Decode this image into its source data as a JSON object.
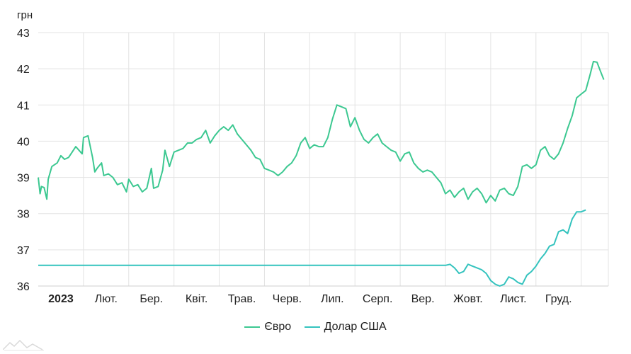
{
  "chart_data": {
    "type": "line",
    "title": "",
    "ylabel": "грн",
    "xlabel": "",
    "ylim": [
      36,
      43
    ],
    "yticks": [
      36,
      37,
      38,
      39,
      40,
      41,
      42,
      43
    ],
    "xlim": [
      0,
      12.6
    ],
    "x_tick_labels": [
      {
        "x": 0.5,
        "label": "2023",
        "bold": true
      },
      {
        "x": 1.5,
        "label": "Лют."
      },
      {
        "x": 2.5,
        "label": "Бер."
      },
      {
        "x": 3.5,
        "label": "Квіт."
      },
      {
        "x": 4.5,
        "label": "Трав."
      },
      {
        "x": 5.5,
        "label": "Черв."
      },
      {
        "x": 6.5,
        "label": "Лип."
      },
      {
        "x": 7.5,
        "label": "Серп."
      },
      {
        "x": 8.5,
        "label": "Вер."
      },
      {
        "x": 9.5,
        "label": "Жовт."
      },
      {
        "x": 10.5,
        "label": "Лист."
      },
      {
        "x": 11.5,
        "label": "Груд."
      }
    ],
    "grid": true,
    "legend": "bottom",
    "series": [
      {
        "name": "Євро",
        "color": "#3cc891",
        "points": [
          [
            0.0,
            39.0
          ],
          [
            0.04,
            38.55
          ],
          [
            0.07,
            38.75
          ],
          [
            0.13,
            38.72
          ],
          [
            0.19,
            38.4
          ],
          [
            0.22,
            38.95
          ],
          [
            0.3,
            39.3
          ],
          [
            0.42,
            39.4
          ],
          [
            0.5,
            39.6
          ],
          [
            0.58,
            39.5
          ],
          [
            0.67,
            39.55
          ],
          [
            0.75,
            39.7
          ],
          [
            0.83,
            39.85
          ],
          [
            0.9,
            39.75
          ],
          [
            0.97,
            39.65
          ],
          [
            1.0,
            40.1
          ],
          [
            1.1,
            40.15
          ],
          [
            1.2,
            39.55
          ],
          [
            1.25,
            39.15
          ],
          [
            1.3,
            39.25
          ],
          [
            1.4,
            39.4
          ],
          [
            1.45,
            39.05
          ],
          [
            1.55,
            39.1
          ],
          [
            1.65,
            39.0
          ],
          [
            1.75,
            38.8
          ],
          [
            1.85,
            38.85
          ],
          [
            1.95,
            38.6
          ],
          [
            2.0,
            38.95
          ],
          [
            2.1,
            38.75
          ],
          [
            2.2,
            38.8
          ],
          [
            2.3,
            38.6
          ],
          [
            2.4,
            38.7
          ],
          [
            2.5,
            39.25
          ],
          [
            2.55,
            38.7
          ],
          [
            2.65,
            38.75
          ],
          [
            2.75,
            39.2
          ],
          [
            2.8,
            39.75
          ],
          [
            2.9,
            39.3
          ],
          [
            3.0,
            39.7
          ],
          [
            3.1,
            39.75
          ],
          [
            3.2,
            39.8
          ],
          [
            3.3,
            39.95
          ],
          [
            3.4,
            39.95
          ],
          [
            3.5,
            40.05
          ],
          [
            3.6,
            40.1
          ],
          [
            3.7,
            40.3
          ],
          [
            3.8,
            39.95
          ],
          [
            3.9,
            40.15
          ],
          [
            4.0,
            40.3
          ],
          [
            4.1,
            40.4
          ],
          [
            4.2,
            40.3
          ],
          [
            4.3,
            40.45
          ],
          [
            4.4,
            40.2
          ],
          [
            4.5,
            40.05
          ],
          [
            4.6,
            39.9
          ],
          [
            4.7,
            39.75
          ],
          [
            4.8,
            39.55
          ],
          [
            4.9,
            39.5
          ],
          [
            5.0,
            39.25
          ],
          [
            5.1,
            39.2
          ],
          [
            5.2,
            39.15
          ],
          [
            5.3,
            39.05
          ],
          [
            5.4,
            39.15
          ],
          [
            5.5,
            39.3
          ],
          [
            5.6,
            39.4
          ],
          [
            5.7,
            39.6
          ],
          [
            5.8,
            39.95
          ],
          [
            5.9,
            40.1
          ],
          [
            6.0,
            39.8
          ],
          [
            6.1,
            39.9
          ],
          [
            6.2,
            39.85
          ],
          [
            6.3,
            39.85
          ],
          [
            6.4,
            40.1
          ],
          [
            6.5,
            40.6
          ],
          [
            6.6,
            41.0
          ],
          [
            6.7,
            40.95
          ],
          [
            6.8,
            40.9
          ],
          [
            6.9,
            40.4
          ],
          [
            7.0,
            40.65
          ],
          [
            7.1,
            40.3
          ],
          [
            7.2,
            40.05
          ],
          [
            7.3,
            39.95
          ],
          [
            7.4,
            40.1
          ],
          [
            7.5,
            40.2
          ],
          [
            7.6,
            39.95
          ],
          [
            7.7,
            39.85
          ],
          [
            7.8,
            39.75
          ],
          [
            7.9,
            39.7
          ],
          [
            8.0,
            39.45
          ],
          [
            8.1,
            39.65
          ],
          [
            8.2,
            39.7
          ],
          [
            8.3,
            39.4
          ],
          [
            8.4,
            39.25
          ],
          [
            8.5,
            39.15
          ],
          [
            8.6,
            39.2
          ],
          [
            8.7,
            39.15
          ],
          [
            8.8,
            39.0
          ],
          [
            8.9,
            38.85
          ],
          [
            9.0,
            38.55
          ],
          [
            9.1,
            38.65
          ],
          [
            9.2,
            38.45
          ],
          [
            9.3,
            38.6
          ],
          [
            9.4,
            38.7
          ],
          [
            9.5,
            38.4
          ],
          [
            9.6,
            38.6
          ],
          [
            9.7,
            38.7
          ],
          [
            9.8,
            38.55
          ],
          [
            9.9,
            38.3
          ],
          [
            10.0,
            38.5
          ],
          [
            10.1,
            38.35
          ],
          [
            10.2,
            38.65
          ],
          [
            10.3,
            38.7
          ],
          [
            10.4,
            38.55
          ],
          [
            10.5,
            38.5
          ],
          [
            10.6,
            38.75
          ],
          [
            10.7,
            39.3
          ],
          [
            10.8,
            39.35
          ],
          [
            10.9,
            39.25
          ],
          [
            11.0,
            39.35
          ],
          [
            11.1,
            39.75
          ],
          [
            11.2,
            39.85
          ],
          [
            11.3,
            39.6
          ],
          [
            11.4,
            39.5
          ],
          [
            11.5,
            39.65
          ],
          [
            11.6,
            39.95
          ],
          [
            11.7,
            40.35
          ],
          [
            11.8,
            40.7
          ],
          [
            11.9,
            41.2
          ],
          [
            12.0,
            41.3
          ],
          [
            12.1,
            41.4
          ],
          [
            12.2,
            41.85
          ],
          [
            12.27,
            42.2
          ],
          [
            12.35,
            42.18
          ],
          [
            12.42,
            41.95
          ],
          [
            12.5,
            41.7
          ]
        ]
      },
      {
        "name": "Долар США",
        "color": "#34c3be",
        "points": [
          [
            0.0,
            36.57
          ],
          [
            9.0,
            36.57
          ],
          [
            9.1,
            36.6
          ],
          [
            9.2,
            36.5
          ],
          [
            9.3,
            36.35
          ],
          [
            9.4,
            36.4
          ],
          [
            9.5,
            36.6
          ],
          [
            9.6,
            36.55
          ],
          [
            9.7,
            36.5
          ],
          [
            9.8,
            36.45
          ],
          [
            9.9,
            36.35
          ],
          [
            10.0,
            36.15
          ],
          [
            10.1,
            36.05
          ],
          [
            10.2,
            36.0
          ],
          [
            10.3,
            36.05
          ],
          [
            10.4,
            36.25
          ],
          [
            10.5,
            36.2
          ],
          [
            10.6,
            36.1
          ],
          [
            10.7,
            36.05
          ],
          [
            10.8,
            36.3
          ],
          [
            10.9,
            36.4
          ],
          [
            11.0,
            36.55
          ],
          [
            11.1,
            36.75
          ],
          [
            11.2,
            36.9
          ],
          [
            11.3,
            37.1
          ],
          [
            11.4,
            37.15
          ],
          [
            11.5,
            37.5
          ],
          [
            11.6,
            37.55
          ],
          [
            11.7,
            37.45
          ],
          [
            11.8,
            37.85
          ],
          [
            11.9,
            38.05
          ],
          [
            12.0,
            38.05
          ],
          [
            12.1,
            38.1
          ]
        ]
      }
    ]
  }
}
